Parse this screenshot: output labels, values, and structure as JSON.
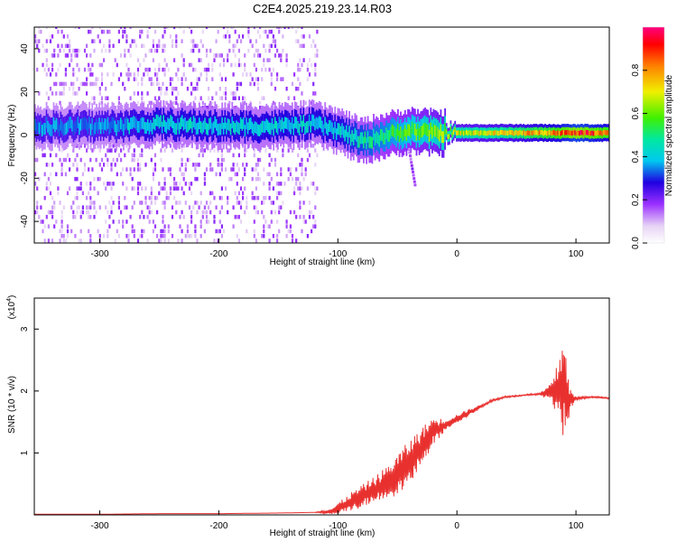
{
  "title": "C2E4.2025.219.23.14.R03",
  "chart_data": [
    {
      "type": "heatmap",
      "xlabel": "Height of straight line (km)",
      "ylabel": "Frequency (Hz)",
      "xlim": [
        -355,
        128
      ],
      "ylim": [
        -50,
        50
      ],
      "x_ticks": [
        -300,
        -200,
        -100,
        0,
        100
      ],
      "y_ticks": [
        -40,
        -20,
        0,
        20,
        40
      ],
      "colorbar": {
        "label": "Normalized spectral amplitude",
        "range": [
          0,
          1
        ],
        "ticks": [
          "0.0",
          "0.2",
          "0.4",
          "0.6",
          "0.8"
        ]
      },
      "ridge": {
        "x": [
          -355,
          -300,
          -250,
          -200,
          -150,
          -120,
          -100,
          -80,
          -60,
          -40,
          -20,
          0,
          40,
          80,
          100,
          128
        ],
        "center_freq": [
          4,
          4,
          5,
          4,
          4,
          5,
          2,
          -3,
          0,
          2,
          1,
          1,
          1,
          1,
          1,
          1
        ],
        "peak_amplitude": [
          0.35,
          0.35,
          0.4,
          0.4,
          0.4,
          0.4,
          0.4,
          0.45,
          0.5,
          0.55,
          0.6,
          0.65,
          0.7,
          0.8,
          0.9,
          0.8
        ]
      }
    },
    {
      "type": "line",
      "xlabel": "Height of straight line (km)",
      "ylabel": "SNR (10 * v/v)",
      "y_exponent_label": "(x10",
      "y_exponent_sup": "4",
      "y_exponent_close": ")",
      "xlim": [
        -355,
        128
      ],
      "ylim": [
        0,
        3.5
      ],
      "x_ticks": [
        -300,
        -200,
        -100,
        0,
        100
      ],
      "y_ticks": [
        1,
        2,
        3
      ],
      "series": [
        {
          "color": "#e8312f",
          "x": [
            -355,
            -300,
            -250,
            -200,
            -150,
            -120,
            -105,
            -100,
            -90,
            -80,
            -70,
            -60,
            -50,
            -40,
            -30,
            -20,
            -10,
            0,
            10,
            20,
            30,
            40,
            50,
            60,
            70,
            80,
            85,
            88,
            90,
            92,
            93,
            95,
            100,
            110,
            120,
            128
          ],
          "y": [
            0.01,
            0.01,
            0.02,
            0.02,
            0.03,
            0.04,
            0.06,
            0.1,
            0.2,
            0.3,
            0.4,
            0.5,
            0.65,
            0.85,
            1.1,
            1.35,
            1.45,
            1.55,
            1.65,
            1.75,
            1.85,
            1.9,
            1.92,
            1.94,
            1.95,
            1.97,
            2.0,
            2.05,
            2.1,
            2.0,
            1.8,
            1.85,
            1.88,
            1.9,
            1.9,
            1.88
          ],
          "noise": [
            0,
            0,
            0,
            0,
            0,
            0,
            0.08,
            0.15,
            0.25,
            0.3,
            0.35,
            0.45,
            0.55,
            0.6,
            0.5,
            0.4,
            0.15,
            0.12,
            0.1,
            0.05,
            0.03,
            0.03,
            0.02,
            0.02,
            0.03,
            0.3,
            0.8,
            1.2,
            1.5,
            1.3,
            1.0,
            0.3,
            0.04,
            0.03,
            0.02,
            0.02
          ]
        }
      ]
    }
  ]
}
